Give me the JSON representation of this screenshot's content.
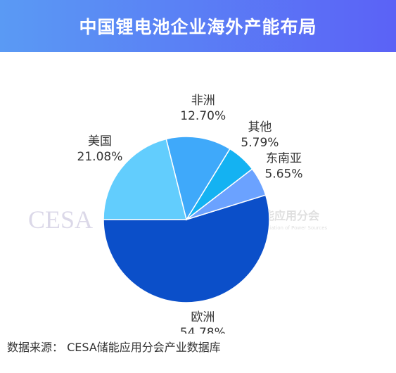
{
  "chart_data": {
    "type": "pie",
    "title": "中国锂电池企业海外产能布局",
    "categories": [
      "欧洲",
      "东南亚",
      "其他",
      "非洲",
      "美国"
    ],
    "values": [
      54.78,
      5.65,
      5.79,
      12.7,
      21.08
    ],
    "value_labels": [
      "54.78%",
      "5.65%",
      "5.79%",
      "12.70%",
      "21.08%"
    ],
    "colors": [
      "#0b4fc9",
      "#6ba2ff",
      "#14b2f2",
      "#3fa9fa",
      "#62cdfd"
    ]
  },
  "watermark": {
    "mark": "CESA",
    "text": "中国化学与物理电源行业协会储能应用分会",
    "english": "China Energy Storage Application Branch of China Industrial Association of Power Sources"
  },
  "source": "数据来源： CESA储能应用分会产业数据库"
}
